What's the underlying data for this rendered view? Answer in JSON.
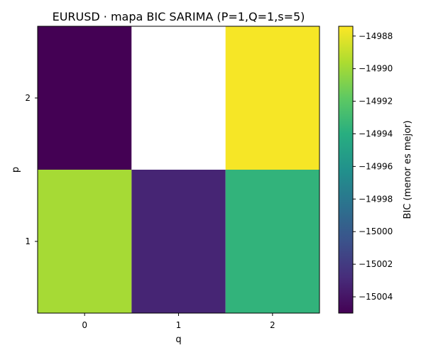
{
  "chart_data": {
    "type": "heatmap",
    "title": "EURUSD · mapa BIC SARIMA (P=1,Q=1,s=5)",
    "xlabel": "q",
    "ylabel": "p",
    "x": [
      "0",
      "1",
      "2"
    ],
    "y": [
      "2",
      "1"
    ],
    "values": [
      [
        -15005.0,
        null,
        -14987.6
      ],
      [
        -14989.8,
        -15003.2,
        -14993.6
      ]
    ],
    "colorbar": {
      "label": "BIC (menor es mejor)",
      "min": -15005.0,
      "max": -14987.4,
      "colormap": "viridis",
      "ticks": [
        "−15004",
        "−15002",
        "−15000",
        "−14998",
        "−14996",
        "−14994",
        "−14992",
        "−14990",
        "−14988"
      ],
      "tick_values": [
        -15004,
        -15002,
        -15000,
        -14998,
        -14996,
        -14994,
        -14992,
        -14990,
        -14988
      ]
    },
    "missing_color": "#ffffff"
  }
}
